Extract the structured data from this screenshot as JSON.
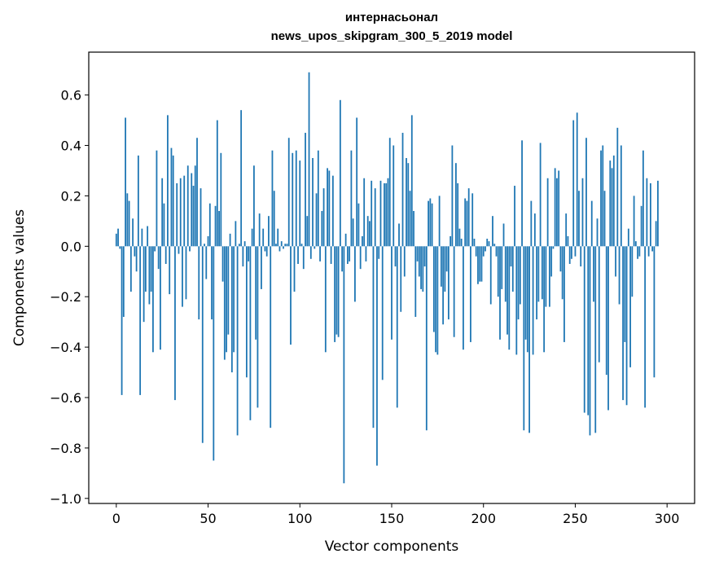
{
  "chart_data": {
    "type": "bar",
    "title_lines": [
      "интернасьонал",
      "news_upos_skipgram_300_5_2019 model"
    ],
    "xlabel": "Vector components",
    "ylabel": "Components values",
    "xlim": [
      -15,
      315
    ],
    "ylim": [
      -1.02,
      0.77
    ],
    "xticks": [
      0,
      50,
      100,
      150,
      200,
      250,
      300
    ],
    "xtick_labels": [
      "0",
      "50",
      "100",
      "150",
      "200",
      "250",
      "300"
    ],
    "yticks": [
      -1.0,
      -0.8,
      -0.6,
      -0.4,
      -0.2,
      0.0,
      0.2,
      0.4,
      0.6
    ],
    "ytick_labels": [
      "−1.0",
      "−0.8",
      "−0.6",
      "−0.4",
      "−0.2",
      "0.0",
      "0.2",
      "0.4",
      "0.6"
    ],
    "bar_color": "#1f77b4",
    "values": [
      0.05,
      0.07,
      -0.01,
      -0.59,
      -0.28,
      0.51,
      0.21,
      0.18,
      -0.18,
      0.11,
      -0.04,
      -0.1,
      0.36,
      -0.59,
      0.07,
      -0.3,
      -0.18,
      0.08,
      -0.23,
      -0.18,
      -0.42,
      -0.02,
      0.38,
      -0.09,
      -0.41,
      0.27,
      0.17,
      -0.07,
      0.52,
      -0.19,
      0.39,
      0.36,
      -0.61,
      0.25,
      -0.03,
      0.27,
      -0.24,
      0.28,
      -0.21,
      0.32,
      -0.02,
      0.29,
      0.24,
      0.32,
      0.43,
      -0.29,
      0.23,
      -0.78,
      0.01,
      -0.13,
      0.04,
      0.17,
      -0.29,
      -0.85,
      0.16,
      0.5,
      0.14,
      0.37,
      -0.14,
      -0.45,
      -0.42,
      -0.35,
      0.05,
      -0.5,
      -0.42,
      0.1,
      -0.75,
      0.01,
      0.54,
      -0.08,
      0.02,
      -0.52,
      -0.06,
      -0.69,
      0.07,
      0.32,
      -0.37,
      -0.64,
      0.13,
      -0.17,
      0.07,
      -0.02,
      -0.04,
      0.12,
      -0.72,
      0.38,
      0.22,
      0.01,
      0.07,
      -0.02,
      0.02,
      -0.01,
      0.01,
      0.01,
      0.43,
      -0.39,
      0.37,
      -0.18,
      0.38,
      -0.07,
      0.34,
      0.01,
      -0.09,
      0.45,
      0.12,
      0.69,
      -0.05,
      0.35,
      -0.01,
      0.21,
      0.38,
      -0.06,
      0.14,
      0.23,
      -0.42,
      0.31,
      0.3,
      -0.07,
      0.28,
      -0.38,
      -0.35,
      -0.36,
      0.58,
      -0.1,
      -0.94,
      0.05,
      -0.07,
      -0.06,
      0.38,
      0.11,
      -0.22,
      0.51,
      0.17,
      -0.09,
      0.04,
      0.27,
      -0.06,
      0.12,
      0.1,
      0.26,
      -0.72,
      0.23,
      -0.87,
      -0.05,
      0.26,
      -0.53,
      0.25,
      0.25,
      0.27,
      0.43,
      -0.37,
      0.4,
      -0.08,
      -0.64,
      0.09,
      -0.26,
      0.45,
      -0.12,
      0.35,
      0.33,
      0.22,
      0.52,
      0.14,
      -0.28,
      -0.06,
      -0.12,
      -0.17,
      -0.18,
      -0.08,
      -0.73,
      0.18,
      0.19,
      0.17,
      -0.34,
      -0.42,
      -0.43,
      0.2,
      -0.16,
      -0.31,
      -0.18,
      -0.1,
      -0.29,
      0.04,
      0.4,
      -0.36,
      0.33,
      0.25,
      0.07,
      0.03,
      -0.41,
      0.19,
      0.18,
      0.23,
      -0.38,
      0.21,
      0.03,
      -0.04,
      -0.15,
      -0.14,
      -0.14,
      -0.04,
      -0.02,
      0.03,
      0.02,
      -0.23,
      0.12,
      0.01,
      -0.04,
      -0.2,
      -0.37,
      -0.17,
      0.09,
      -0.22,
      -0.35,
      -0.41,
      -0.08,
      -0.18,
      0.24,
      -0.43,
      -0.29,
      -0.23,
      0.42,
      -0.73,
      -0.37,
      -0.42,
      -0.74,
      0.18,
      -0.43,
      0.13,
      -0.29,
      -0.22,
      0.41,
      -0.21,
      -0.42,
      -0.24,
      0.27,
      -0.24,
      -0.12,
      -0.01,
      0.31,
      0.27,
      0.3,
      -0.1,
      -0.21,
      -0.38,
      0.13,
      0.04,
      -0.07,
      -0.05,
      0.5,
      -0.04,
      0.53,
      0.22,
      -0.08,
      0.27,
      -0.66,
      0.43,
      -0.67,
      -0.75,
      0.18,
      -0.22,
      -0.74,
      0.11,
      -0.46,
      0.38,
      0.4,
      0.22,
      -0.51,
      -0.65,
      0.34,
      0.31,
      0.36,
      -0.12,
      0.47,
      -0.23,
      0.4,
      -0.61,
      -0.38,
      -0.63,
      0.07,
      -0.48,
      -0.2,
      0.2,
      0.02,
      -0.05,
      -0.04,
      0.16,
      0.38,
      -0.64,
      0.27,
      -0.04,
      0.25,
      -0.02,
      -0.52,
      0.1,
      0.26
    ]
  }
}
